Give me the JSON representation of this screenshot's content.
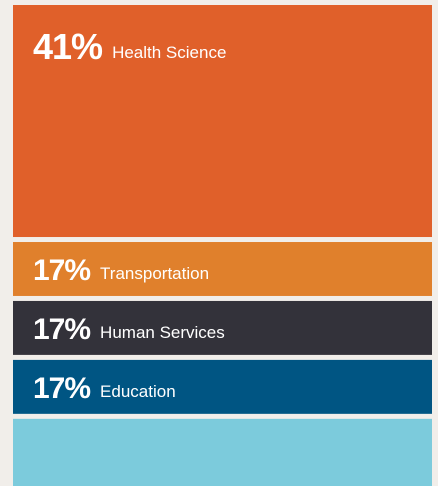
{
  "chart_data": {
    "type": "stacked-blocks",
    "categories": [
      "Health Science",
      "Transportation",
      "Human Services",
      "Education",
      null
    ],
    "values": [
      41,
      17,
      17,
      17,
      null
    ],
    "value_labels": [
      "41%",
      "17%",
      "17%",
      "17%",
      null
    ],
    "colors": [
      "#e0602a",
      "#e0802c",
      "#33323a",
      "#005583",
      "#7ccbdc"
    ]
  }
}
